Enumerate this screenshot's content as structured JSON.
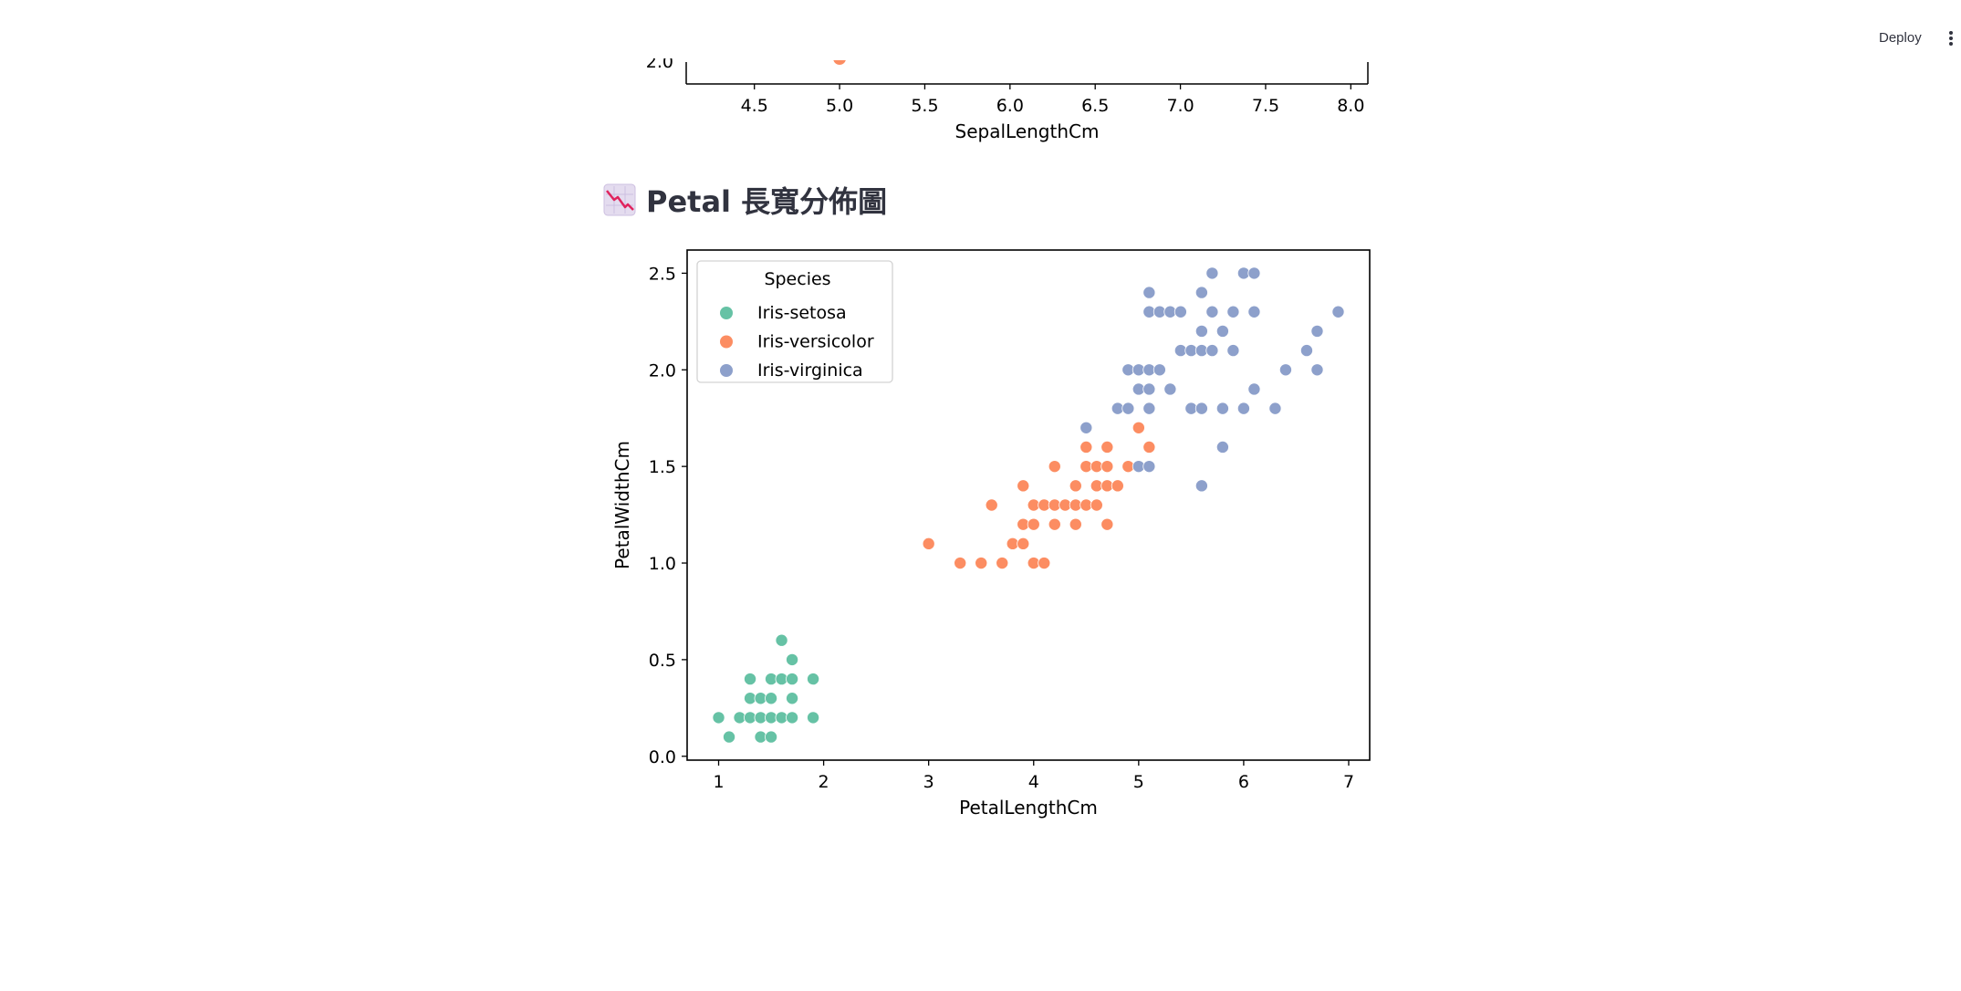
{
  "toolbar": {
    "deploy_label": "Deploy",
    "menu_icon": "vertical-ellipsis-icon"
  },
  "heading": {
    "icon": "chart-decreasing-icon",
    "text": "Petal 長寬分佈圖"
  },
  "colors": {
    "setosa": "#66c2a5",
    "versicolor": "#fc8d62",
    "virginica": "#8da0cb",
    "text": "#31333f"
  },
  "chart_data": [
    {
      "type": "scatter",
      "title": "",
      "xlabel": "SepalLengthCm",
      "ylabel": "",
      "xlim": [
        4.1,
        8.1
      ],
      "xticks": [
        4.5,
        5.0,
        5.5,
        6.0,
        6.5,
        7.0,
        7.5,
        8.0
      ],
      "xtick_labels": [
        "4.5",
        "5.0",
        "5.5",
        "6.0",
        "6.5",
        "7.0",
        "7.5",
        "8.0"
      ],
      "partial_ytick_label": "2.0",
      "grid": false,
      "series": [
        {
          "name": "Iris-versicolor",
          "points": [
            [
              5.0,
              2.0
            ]
          ]
        }
      ]
    },
    {
      "type": "scatter",
      "title": "",
      "xlabel": "PetalLengthCm",
      "ylabel": "PetalWidthCm",
      "xlim": [
        0.7,
        7.2
      ],
      "ylim": [
        -0.02,
        2.62
      ],
      "xticks": [
        1,
        2,
        3,
        4,
        5,
        6,
        7
      ],
      "xtick_labels": [
        "1",
        "2",
        "3",
        "4",
        "5",
        "6",
        "7"
      ],
      "yticks": [
        0.0,
        0.5,
        1.0,
        1.5,
        2.0,
        2.5
      ],
      "ytick_labels": [
        "0.0",
        "0.5",
        "1.0",
        "1.5",
        "2.0",
        "2.5"
      ],
      "grid": false,
      "legend": {
        "title": "Species",
        "position": "upper-left"
      },
      "series": [
        {
          "name": "Iris-setosa",
          "points": [
            [
              1.0,
              0.2
            ],
            [
              1.1,
              0.1
            ],
            [
              1.2,
              0.2
            ],
            [
              1.3,
              0.2
            ],
            [
              1.3,
              0.3
            ],
            [
              1.3,
              0.4
            ],
            [
              1.4,
              0.1
            ],
            [
              1.4,
              0.2
            ],
            [
              1.4,
              0.3
            ],
            [
              1.5,
              0.1
            ],
            [
              1.5,
              0.2
            ],
            [
              1.5,
              0.3
            ],
            [
              1.5,
              0.4
            ],
            [
              1.6,
              0.2
            ],
            [
              1.6,
              0.4
            ],
            [
              1.6,
              0.6
            ],
            [
              1.7,
              0.2
            ],
            [
              1.7,
              0.3
            ],
            [
              1.7,
              0.4
            ],
            [
              1.7,
              0.5
            ],
            [
              1.9,
              0.2
            ],
            [
              1.9,
              0.4
            ]
          ]
        },
        {
          "name": "Iris-versicolor",
          "points": [
            [
              3.0,
              1.1
            ],
            [
              3.3,
              1.0
            ],
            [
              3.5,
              1.0
            ],
            [
              3.6,
              1.3
            ],
            [
              3.7,
              1.0
            ],
            [
              3.8,
              1.1
            ],
            [
              3.9,
              1.1
            ],
            [
              3.9,
              1.2
            ],
            [
              3.9,
              1.4
            ],
            [
              4.0,
              1.0
            ],
            [
              4.0,
              1.2
            ],
            [
              4.0,
              1.3
            ],
            [
              4.1,
              1.0
            ],
            [
              4.1,
              1.3
            ],
            [
              4.2,
              1.2
            ],
            [
              4.2,
              1.3
            ],
            [
              4.2,
              1.5
            ],
            [
              4.3,
              1.3
            ],
            [
              4.4,
              1.2
            ],
            [
              4.4,
              1.3
            ],
            [
              4.4,
              1.4
            ],
            [
              4.5,
              1.3
            ],
            [
              4.5,
              1.5
            ],
            [
              4.5,
              1.6
            ],
            [
              4.6,
              1.3
            ],
            [
              4.6,
              1.4
            ],
            [
              4.6,
              1.5
            ],
            [
              4.7,
              1.2
            ],
            [
              4.7,
              1.4
            ],
            [
              4.7,
              1.5
            ],
            [
              4.7,
              1.6
            ],
            [
              4.8,
              1.4
            ],
            [
              4.9,
              1.5
            ],
            [
              5.0,
              1.7
            ],
            [
              5.1,
              1.6
            ]
          ]
        },
        {
          "name": "Iris-virginica",
          "points": [
            [
              4.5,
              1.7
            ],
            [
              4.8,
              1.8
            ],
            [
              4.9,
              1.8
            ],
            [
              4.9,
              2.0
            ],
            [
              5.0,
              1.5
            ],
            [
              5.0,
              1.9
            ],
            [
              5.0,
              2.0
            ],
            [
              5.1,
              1.5
            ],
            [
              5.1,
              1.8
            ],
            [
              5.1,
              1.9
            ],
            [
              5.1,
              2.0
            ],
            [
              5.1,
              2.3
            ],
            [
              5.1,
              2.4
            ],
            [
              5.2,
              2.0
            ],
            [
              5.2,
              2.3
            ],
            [
              5.3,
              1.9
            ],
            [
              5.3,
              2.3
            ],
            [
              5.4,
              2.1
            ],
            [
              5.4,
              2.3
            ],
            [
              5.5,
              1.8
            ],
            [
              5.5,
              2.1
            ],
            [
              5.6,
              1.4
            ],
            [
              5.6,
              1.8
            ],
            [
              5.6,
              2.1
            ],
            [
              5.6,
              2.2
            ],
            [
              5.6,
              2.4
            ],
            [
              5.7,
              2.1
            ],
            [
              5.7,
              2.3
            ],
            [
              5.7,
              2.5
            ],
            [
              5.8,
              1.6
            ],
            [
              5.8,
              1.8
            ],
            [
              5.8,
              2.2
            ],
            [
              5.9,
              2.1
            ],
            [
              5.9,
              2.3
            ],
            [
              6.0,
              1.8
            ],
            [
              6.0,
              2.5
            ],
            [
              6.1,
              1.9
            ],
            [
              6.1,
              2.3
            ],
            [
              6.1,
              2.5
            ],
            [
              6.3,
              1.8
            ],
            [
              6.4,
              2.0
            ],
            [
              6.6,
              2.1
            ],
            [
              6.7,
              2.0
            ],
            [
              6.7,
              2.2
            ],
            [
              6.9,
              2.3
            ]
          ]
        }
      ]
    }
  ]
}
